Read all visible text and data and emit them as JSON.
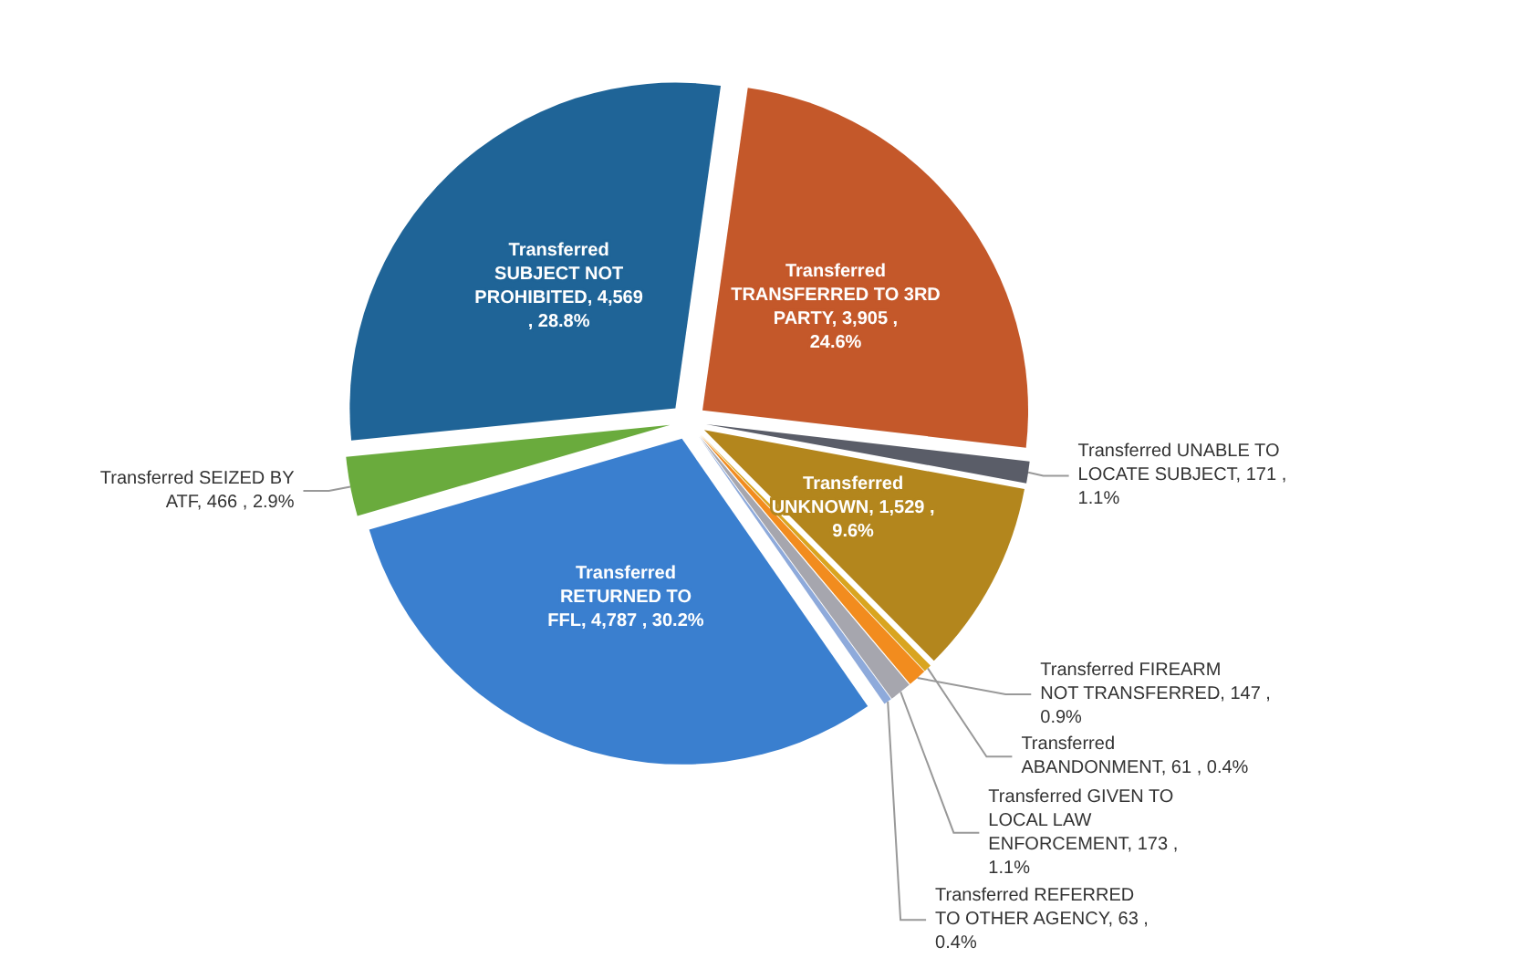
{
  "chart_data": {
    "type": "pie",
    "categories": [
      "Transferred TRANSFERRED TO 3RD PARTY",
      "Transferred UNABLE TO LOCATE SUBJECT",
      "Transferred UNKNOWN",
      "Transferred ABANDONMENT",
      "Transferred FIREARM NOT TRANSFERRED",
      "Transferred GIVEN TO LOCAL LAW ENFORCEMENT",
      "Transferred REFERRED TO OTHER AGENCY",
      "Transferred RETURNED TO FFL",
      "Transferred SEIZED BY ATF",
      "Transferred SUBJECT NOT PROHIBITED"
    ],
    "values": [
      3905,
      171,
      1529,
      61,
      147,
      173,
      63,
      4787,
      466,
      4569
    ],
    "value_labels": [
      "3,905 , 24.6%",
      "171 , 1.1%",
      "1,529 , 9.6%",
      "61 , 0.4%",
      "147 , 0.9%",
      "173 , 1.1%",
      "63 , 0.4%",
      "4,787 , 30.2%",
      "466 , 2.9%",
      "4,569 , 28.8%"
    ],
    "colors": [
      "#c4582a",
      "#5a5d68",
      "#b3861d",
      "#d9a520",
      "#f28c1e",
      "#a6a6ae",
      "#8eaadb",
      "#3a7fcf",
      "#6aab3d",
      "#1f6497"
    ],
    "legend": false
  }
}
